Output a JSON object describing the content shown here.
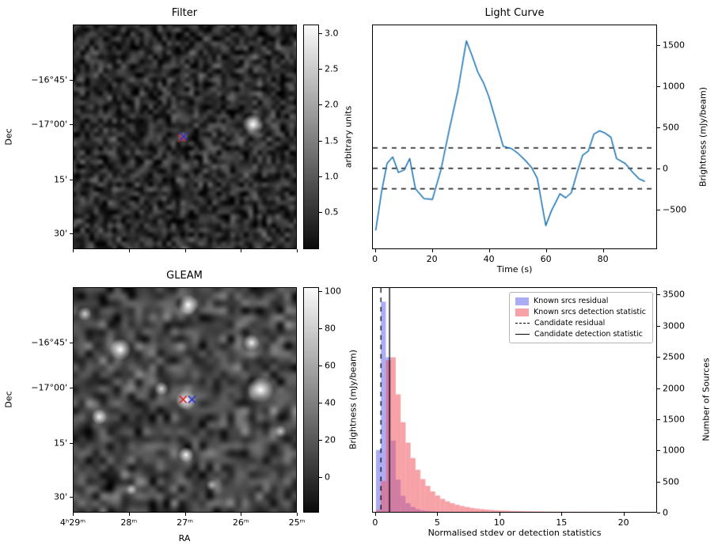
{
  "figure": {
    "background": "#ffffff"
  },
  "chart_data": [
    {
      "type": "heatmap",
      "title": "Filter",
      "ylabel": "Dec",
      "colorbar": {
        "label": "arbitrary units",
        "vmin": -0.02,
        "vmax": 3.12,
        "ticks": [
          0.5,
          1.0,
          1.5,
          2.0,
          2.5,
          3.0
        ],
        "tick_labels": [
          "0.5",
          "1.0",
          "1.5",
          "2.0",
          "2.5",
          "3.0"
        ]
      },
      "yticks": [
        {
          "f": 0.246,
          "label": "−16°45'"
        },
        {
          "f": 0.444,
          "label": "−17°00'"
        },
        {
          "f": 0.69,
          "label": "15'"
        },
        {
          "f": 0.93,
          "label": "30'"
        }
      ],
      "noise": {
        "seed": 11,
        "grain": 50,
        "base": 45,
        "amp": 85
      },
      "sources": [
        {
          "x": 0.806,
          "y": 0.445,
          "r": 14,
          "a": 1.0
        },
        {
          "x": 0.49,
          "y": 0.5,
          "r": 7,
          "a": 0.5
        }
      ],
      "markers": [
        {
          "x": 0.487,
          "y": 0.505,
          "color": "#d62728"
        },
        {
          "x": 0.494,
          "y": 0.498,
          "color": "#2b35d0"
        }
      ]
    },
    {
      "type": "line",
      "title": "Light Curve",
      "xlabel": "Time (s)",
      "ylabel": "Brightness (mJy/beam)",
      "line_color": "#1f77b4",
      "hlines": [
        250,
        0,
        -250
      ],
      "xlim": [
        -1,
        99
      ],
      "ylim": [
        -980,
        1750
      ],
      "xticks": [
        0,
        20,
        40,
        60,
        80
      ],
      "xtick_labels": [
        "0",
        "20",
        "40",
        "60",
        "80"
      ],
      "yticks": [
        -500,
        0,
        500,
        1000,
        1500
      ],
      "ytick_labels": [
        "−500",
        "0",
        "500",
        "1000",
        "1500"
      ],
      "x": [
        0,
        2,
        4,
        6,
        8,
        10,
        12,
        14,
        17,
        20,
        23,
        26,
        29,
        32,
        34,
        36,
        38,
        40,
        43,
        45,
        48,
        50,
        53,
        55,
        57,
        60,
        62,
        65,
        67,
        69,
        71,
        73,
        75,
        77,
        79,
        81,
        83,
        85,
        88,
        91,
        93,
        95
      ],
      "y": [
        -760,
        -300,
        60,
        140,
        -50,
        -20,
        120,
        -250,
        -370,
        -380,
        -20,
        480,
        950,
        1560,
        1380,
        1180,
        1050,
        870,
        510,
        270,
        240,
        190,
        90,
        10,
        -120,
        -700,
        -520,
        -310,
        -360,
        -300,
        -60,
        160,
        210,
        420,
        460,
        430,
        380,
        120,
        60,
        -60,
        -130,
        -160
      ]
    },
    {
      "type": "heatmap",
      "title": "GLEAM",
      "xlabel": "RA",
      "ylabel": "Dec",
      "colorbar": {
        "label": "Brightness (mJy/beam)",
        "vmin": -19,
        "vmax": 102,
        "ticks": [
          0,
          20,
          40,
          60,
          80,
          100
        ],
        "tick_labels": [
          "0",
          "20",
          "40",
          "60",
          "80",
          "100"
        ]
      },
      "yticks": [
        {
          "f": 0.246,
          "label": "−16°45'"
        },
        {
          "f": 0.444,
          "label": "−17°00'"
        },
        {
          "f": 0.69,
          "label": "15'"
        },
        {
          "f": 0.93,
          "label": "30'"
        }
      ],
      "xticks": [
        {
          "f": 0.0,
          "label": "4ʰ29ᵐ"
        },
        {
          "f": 0.25,
          "label": "28ᵐ"
        },
        {
          "f": 0.5,
          "label": "27ᵐ"
        },
        {
          "f": 0.75,
          "label": "26ᵐ"
        },
        {
          "f": 1.0,
          "label": "25ᵐ"
        }
      ],
      "noise": {
        "seed": 77,
        "grain": 32,
        "base": 70,
        "amp": 95
      },
      "sources": [
        {
          "x": 0.515,
          "y": 0.075,
          "r": 13,
          "a": 1.0
        },
        {
          "x": 0.21,
          "y": 0.275,
          "r": 14,
          "a": 1.0
        },
        {
          "x": 0.115,
          "y": 0.575,
          "r": 10,
          "a": 0.9
        },
        {
          "x": 0.05,
          "y": 0.115,
          "r": 9,
          "a": 0.75
        },
        {
          "x": 0.505,
          "y": 0.5,
          "r": 13,
          "a": 1.0
        },
        {
          "x": 0.395,
          "y": 0.45,
          "r": 9,
          "a": 0.8
        },
        {
          "x": 0.84,
          "y": 0.455,
          "r": 17,
          "a": 1.0
        },
        {
          "x": 0.8,
          "y": 0.245,
          "r": 11,
          "a": 0.95
        },
        {
          "x": 0.505,
          "y": 0.745,
          "r": 10,
          "a": 0.95
        },
        {
          "x": 0.93,
          "y": 0.64,
          "r": 8,
          "a": 0.7
        },
        {
          "x": 0.62,
          "y": 0.88,
          "r": 7,
          "a": 0.6
        },
        {
          "x": 0.26,
          "y": 0.9,
          "r": 7,
          "a": 0.6
        }
      ],
      "markers": [
        {
          "x": 0.492,
          "y": 0.498,
          "color": "#d62728"
        },
        {
          "x": 0.532,
          "y": 0.498,
          "color": "#2b35d0"
        }
      ]
    },
    {
      "type": "histogram",
      "xlabel": "Normalised stdev or detection statistics",
      "ylabel": "Number of Sources",
      "bin_start": 0,
      "bin_width": 0.4,
      "xlim": [
        -0.25,
        22.7
      ],
      "ylim": [
        0,
        3620
      ],
      "xticks": [
        0,
        5,
        10,
        15,
        20
      ],
      "xtick_labels": [
        "0",
        "5",
        "10",
        "15",
        "20"
      ],
      "yticks": [
        0,
        500,
        1000,
        1500,
        2000,
        2500,
        3000,
        3500
      ],
      "ytick_labels": [
        "0",
        "500",
        "1000",
        "1500",
        "2000",
        "2500",
        "3000",
        "3500"
      ],
      "series": [
        {
          "name": "Known srcs residual",
          "color": "rgba(70,70,230,0.45)",
          "counts": [
            1000,
            3400,
            2500,
            1150,
            520,
            260,
            140,
            80,
            45,
            25,
            15,
            9,
            5,
            3,
            2,
            1,
            1
          ]
        },
        {
          "name": "Known srcs detection statistic",
          "color": "rgba(240,85,95,0.55)",
          "counts": [
            30,
            500,
            2450,
            2500,
            1900,
            1450,
            1120,
            870,
            680,
            530,
            420,
            330,
            265,
            210,
            170,
            140,
            115,
            95,
            78,
            64,
            53,
            44,
            37,
            31,
            26,
            22,
            19,
            16,
            14,
            12,
            10,
            9,
            8,
            7,
            6,
            6,
            5,
            5,
            4,
            4,
            3,
            3,
            3,
            2,
            2,
            2,
            2,
            2,
            1,
            1,
            1,
            1,
            1,
            1,
            1,
            1
          ]
        }
      ],
      "vlines": [
        {
          "name": "Candidate residual",
          "style": "dashed",
          "x": 0.4
        },
        {
          "name": "Candidate detection statistic",
          "style": "solid",
          "x": 1.1
        }
      ],
      "legend": [
        {
          "label": "Known srcs residual",
          "swatch": "patch-blue"
        },
        {
          "label": "Known srcs detection statistic",
          "swatch": "patch-pink"
        },
        {
          "label": "Candidate residual",
          "swatch": "line-dashed"
        },
        {
          "label": "Candidate detection statistic",
          "swatch": "line-solid"
        }
      ]
    }
  ]
}
